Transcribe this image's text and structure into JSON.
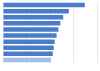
{
  "chart_data": {
    "type": "bar",
    "orientation": "horizontal",
    "categories": [
      null,
      null,
      null,
      null,
      null,
      null,
      null,
      null,
      null,
      null
    ],
    "values": [
      87,
      70,
      64,
      61,
      59,
      57,
      55,
      54,
      53,
      51
    ],
    "colors": [
      "#4a7dc9",
      "#4a7dc9",
      "#4a7dc9",
      "#4a7dc9",
      "#4a7dc9",
      "#4a7dc9",
      "#4a7dc9",
      "#4a7dc9",
      "#4a7dc9",
      "#a3bfe8"
    ],
    "xlim": [
      0,
      100
    ],
    "xticks": [
      0,
      25,
      50,
      75,
      100
    ],
    "grid": true,
    "tick_labels": false
  }
}
